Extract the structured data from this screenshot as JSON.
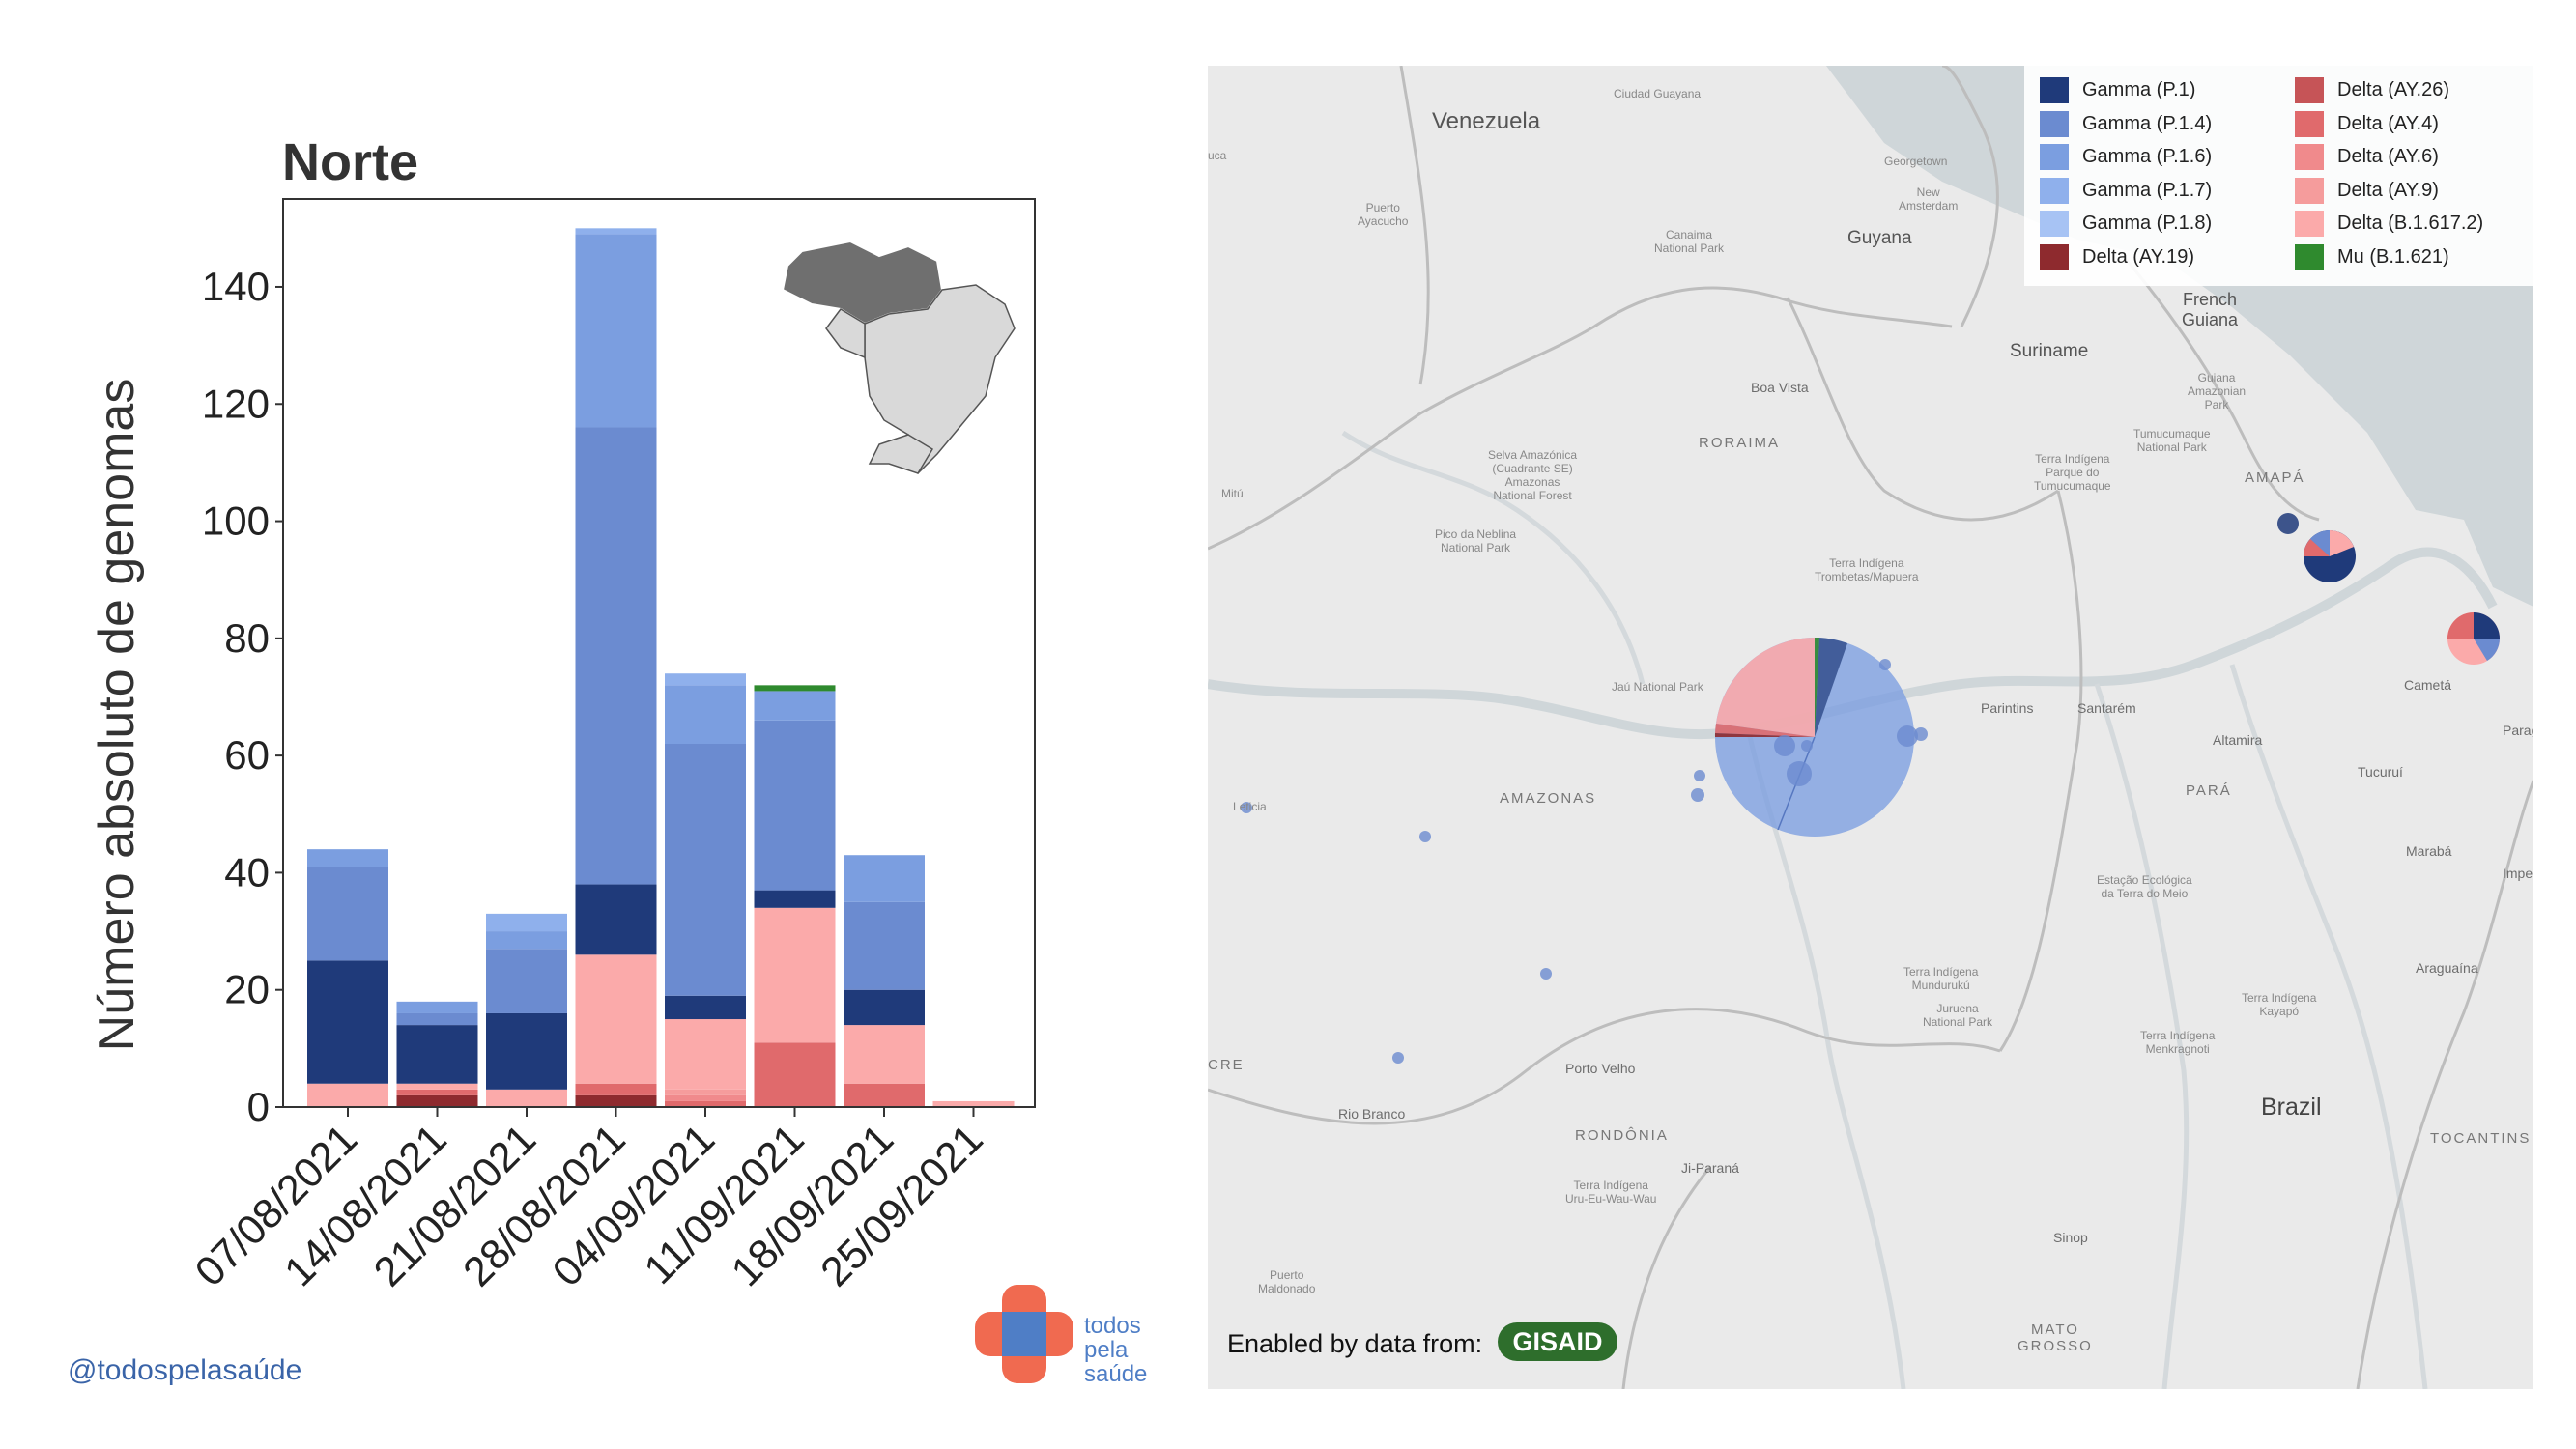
{
  "chart_data": {
    "type": "bar",
    "stacked": true,
    "title": "Norte",
    "ylabel": "Número absoluto de genomas",
    "xlabel": "",
    "ylim": [
      0,
      155
    ],
    "yticks": [
      0,
      20,
      40,
      60,
      80,
      100,
      120,
      140
    ],
    "categories": [
      "07/08/2021",
      "14/08/2021",
      "21/08/2021",
      "28/08/2021",
      "04/09/2021",
      "11/09/2021",
      "18/09/2021",
      "25/09/2021"
    ],
    "series": [
      {
        "name": "Delta (AY.19)",
        "color": "#8e2a2e",
        "values": [
          0,
          2,
          0,
          2,
          0,
          0,
          0,
          0
        ]
      },
      {
        "name": "Delta (AY.26)",
        "color": "#c65457",
        "values": [
          0,
          0,
          0,
          0,
          0,
          0,
          0,
          0
        ]
      },
      {
        "name": "Delta (AY.4)",
        "color": "#e06a6c",
        "values": [
          0,
          1,
          0,
          2,
          1,
          11,
          4,
          0
        ]
      },
      {
        "name": "Delta (AY.6)",
        "color": "#f08a8c",
        "values": [
          0,
          0,
          0,
          0,
          1,
          0,
          0,
          0
        ]
      },
      {
        "name": "Delta (AY.9)",
        "color": "#f59c9c",
        "values": [
          0,
          0,
          0,
          0,
          1,
          0,
          0,
          0
        ]
      },
      {
        "name": "Delta (B.1.617.2)",
        "color": "#fbaaaa",
        "values": [
          4,
          1,
          3,
          22,
          12,
          23,
          10,
          1
        ]
      },
      {
        "name": "Gamma (P.1)",
        "color": "#1f3a7a",
        "values": [
          21,
          10,
          13,
          12,
          4,
          3,
          6,
          0
        ]
      },
      {
        "name": "Gamma (P.1.4)",
        "color": "#6b8bd0",
        "values": [
          16,
          2,
          11,
          78,
          43,
          29,
          15,
          0
        ]
      },
      {
        "name": "Gamma (P.1.6)",
        "color": "#7b9ee0",
        "values": [
          3,
          2,
          3,
          33,
          10,
          5,
          8,
          0
        ]
      },
      {
        "name": "Gamma (P.1.7)",
        "color": "#8fb0ec",
        "values": [
          0,
          0,
          3,
          1,
          2,
          0,
          0,
          0
        ]
      },
      {
        "name": "Gamma (P.1.8)",
        "color": "#a7c3f4",
        "values": [
          0,
          0,
          0,
          0,
          0,
          0,
          0,
          0
        ]
      },
      {
        "name": "Mu (B.1.621)",
        "color": "#2f8a2e",
        "values": [
          0,
          0,
          0,
          0,
          0,
          1,
          0,
          0
        ]
      }
    ]
  },
  "handle": "@todospelasaúde",
  "logo_text": [
    "todos",
    "pela",
    "saúde"
  ],
  "map": {
    "legend": [
      {
        "label": "Gamma (P.1)",
        "color": "#1f3a7a"
      },
      {
        "label": "Delta (AY.26)",
        "color": "#c65457"
      },
      {
        "label": "Gamma (P.1.4)",
        "color": "#6b8bd0"
      },
      {
        "label": "Delta (AY.4)",
        "color": "#e06a6c"
      },
      {
        "label": "Gamma (P.1.6)",
        "color": "#7b9ee0"
      },
      {
        "label": "Delta (AY.6)",
        "color": "#f08a8c"
      },
      {
        "label": "Gamma (P.1.7)",
        "color": "#8fb0ec"
      },
      {
        "label": "Delta (AY.9)",
        "color": "#f59c9c"
      },
      {
        "label": "Gamma (P.1.8)",
        "color": "#a7c3f4"
      },
      {
        "label": "Delta (B.1.617.2)",
        "color": "#fbaaaa"
      },
      {
        "label": "Delta (AY.19)",
        "color": "#8e2a2e"
      },
      {
        "label": "Mu (B.1.621)",
        "color": "#2f8a2e"
      }
    ],
    "places": {
      "venezuela": "Venezuela",
      "guyana": "Guyana",
      "suriname": "Suriname",
      "french_guiana": "French\nGuiana",
      "brazil": "Brazil",
      "roraima": "RORAIMA",
      "amapa": "AMAPÁ",
      "amazonas": "AMAZONAS",
      "para": "PARÁ",
      "rondonia": "RONDÔNIA",
      "tocantins": "TOCANTINS",
      "mato_grosso": "MATO\nGROSSO",
      "boa_vista": "Boa Vista",
      "parintins": "Parintins",
      "santarem": "Santarém",
      "altamira": "Altamira",
      "maraba": "Marabá",
      "araguaina": "Araguaína",
      "porto_velho": "Porto Velho",
      "rio_branco": "Rio Branco",
      "ji_parana": "Ji-Paraná",
      "sinop": "Sinop",
      "tucurui": "Tucuruí",
      "cameta": "Cametá",
      "georgetown": "Georgetown",
      "ciudad_guayana": "Ciudad Guayana",
      "puerto_ayacucho": "Puerto\nAyacucho",
      "mitu": "Mitú",
      "leticia": "Leticia",
      "jau": "Jaú National Park",
      "pico_neblina": "Pico da Neblina\nNational Park",
      "trombetas": "Terra Indígena\nTrombetas/Mapuera",
      "canaima": "Canaima\nNational Park",
      "selva": "Selva Amazónica\n(Cuadrante SE)\nAmazonas\nNational Forest",
      "tumucumaque": "Terra Indígena\nParque do\nTumucumaque",
      "tumucumaque_np": "Tumucumaque\nNational Park",
      "guiana_park": "Guiana\nAmazonian\nPark",
      "munduruku": "Terra Indígena\nMundurukú",
      "juruena": "Juruena\nNational Park",
      "kayapo": "Terra Indígena\nKayapó",
      "menkragnoti": "Terra Indígena\nMenkragnoti",
      "terra_meio": "Estação Ecológica\nda Terra do Meio",
      "uru_eu": "Terra Indígena\nUru-Eu-Wau-Wau",
      "puerto_maldonado": "Puerto\nMaldonado",
      "cre": "CRE",
      "paragominas": "Parag",
      "imperatriz": "Imper",
      "new_amsterdam": "New\nAmsterdam",
      "uca": "uca"
    },
    "credit": "Enabled by data from:",
    "gisaid": "GISAID"
  }
}
